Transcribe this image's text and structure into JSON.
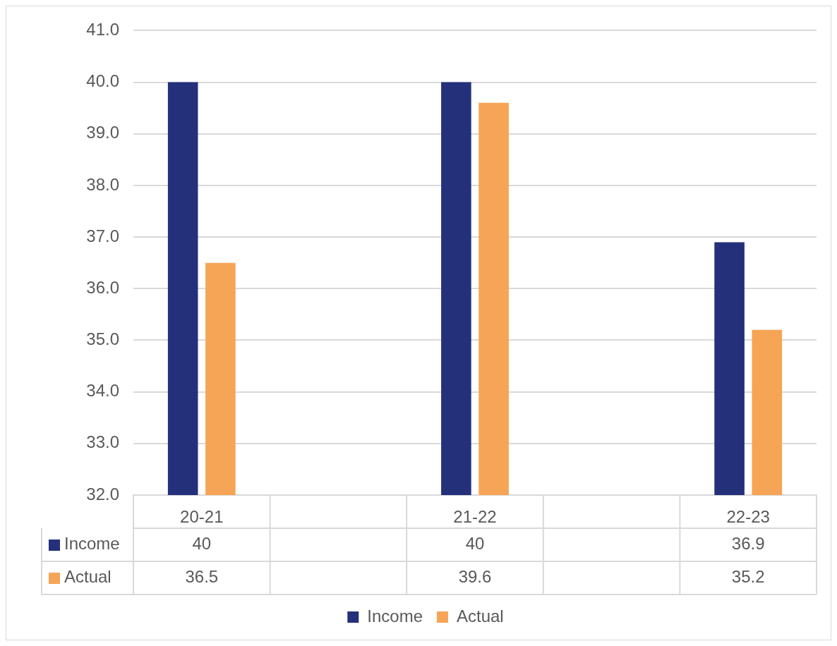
{
  "chart_data": {
    "type": "bar",
    "categories": [
      "20-21",
      null,
      "21-22",
      null,
      "22-23"
    ],
    "series": [
      {
        "name": "Income",
        "color": "#24307a",
        "values": [
          40,
          null,
          40,
          null,
          36.9
        ]
      },
      {
        "name": "Actual",
        "color": "#f6a455",
        "values": [
          36.5,
          null,
          39.6,
          null,
          35.2
        ]
      }
    ],
    "ylim": [
      32,
      41
    ],
    "yticks": [
      {
        "value": 32,
        "label": "32.0"
      },
      {
        "value": 33,
        "label": "33.0"
      },
      {
        "value": 34,
        "label": "34.0"
      },
      {
        "value": 35,
        "label": "35.0"
      },
      {
        "value": 36,
        "label": "36.0"
      },
      {
        "value": 37,
        "label": "37.0"
      },
      {
        "value": 38,
        "label": "38.0"
      },
      {
        "value": 39,
        "label": "39.0"
      },
      {
        "value": 40,
        "label": "40.0"
      },
      {
        "value": 41,
        "label": "41.0"
      }
    ],
    "grid": "y",
    "legend": "bottom",
    "data_labels": true
  }
}
